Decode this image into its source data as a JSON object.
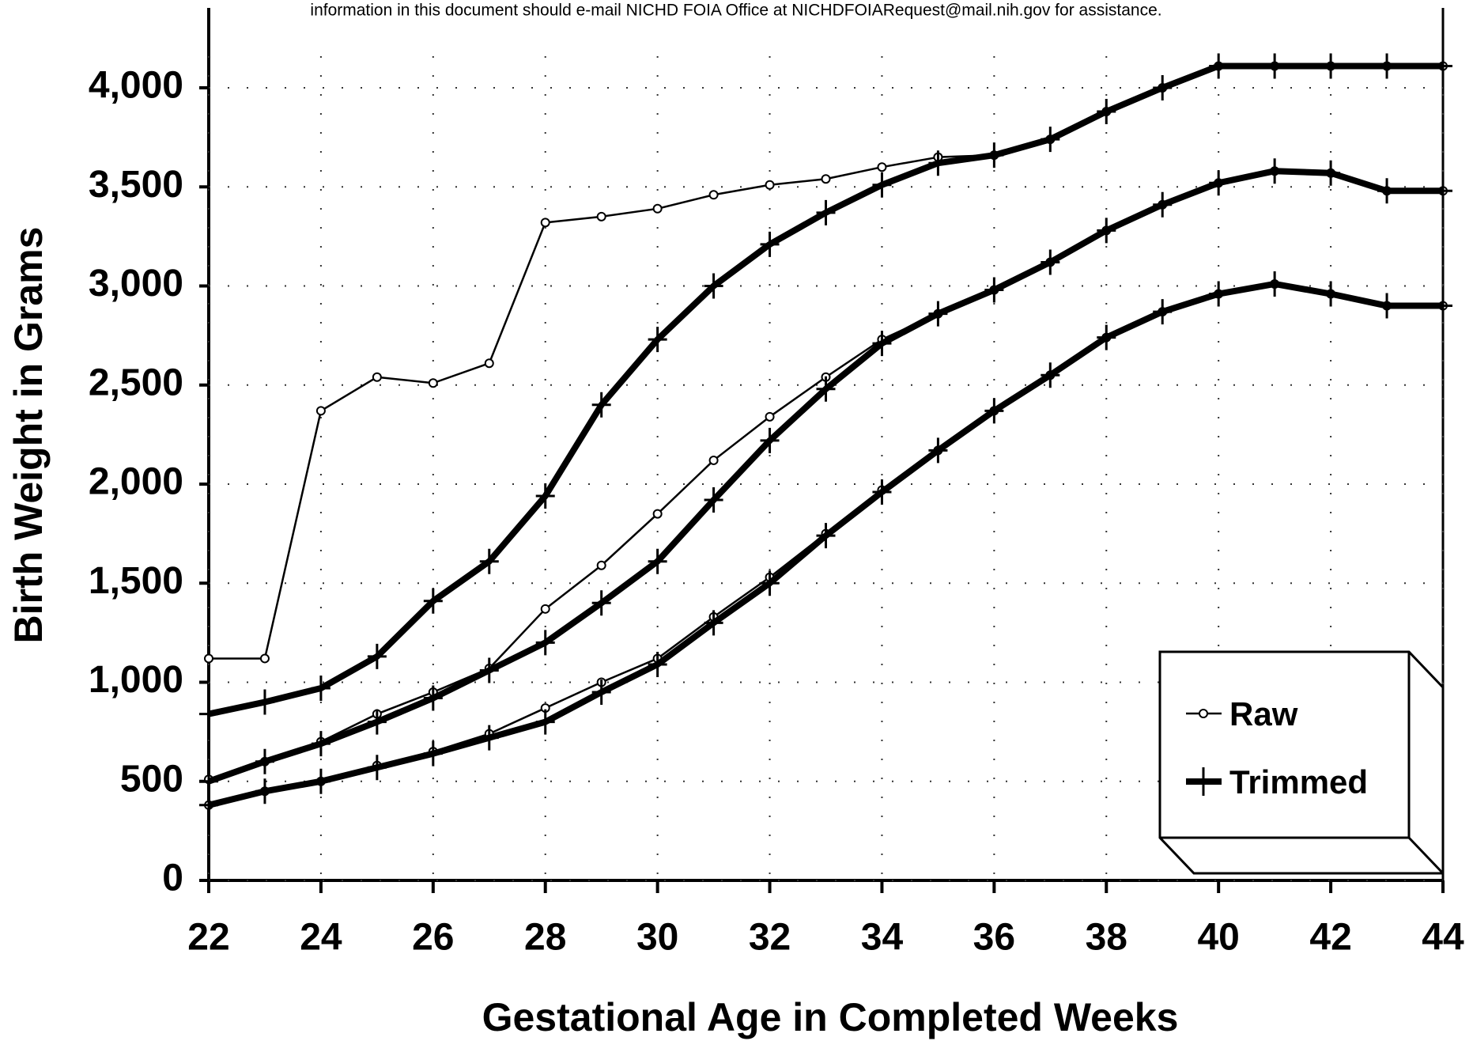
{
  "note": "information in this document should e-mail NICHD FOIA Office at NICHDFOIARequest@mail.nih.gov for assistance.",
  "chart_data": {
    "type": "line",
    "xlabel": "Gestational Age in Completed Weeks",
    "ylabel": "Birth Weight in Grams",
    "x": [
      22,
      23,
      24,
      25,
      26,
      27,
      28,
      29,
      30,
      31,
      32,
      33,
      34,
      35,
      36,
      37,
      38,
      39,
      40,
      41,
      42,
      43,
      44
    ],
    "xlim": [
      22,
      44
    ],
    "xticks": [
      22,
      24,
      26,
      28,
      30,
      32,
      34,
      36,
      38,
      40,
      42,
      44
    ],
    "ylim": [
      0,
      4000
    ],
    "yticks": [
      0,
      500,
      {
        "value": 1000,
        "label": "1,000"
      },
      {
        "value": 1500,
        "label": "1,500"
      },
      {
        "value": 2000,
        "label": "2,000"
      },
      {
        "value": 2500,
        "label": "2,500"
      },
      {
        "value": 3000,
        "label": "3,000"
      },
      {
        "value": 3500,
        "label": "3,500"
      },
      {
        "value": 4000,
        "label": "4,000"
      }
    ],
    "grid": true,
    "legend": "lower right",
    "series": [
      {
        "name": "Raw",
        "color": "#000000",
        "marker": "circle",
        "values": [
          1120,
          1120,
          2370,
          2540,
          2510,
          2610,
          3320,
          3350,
          3390,
          3460,
          3510,
          3540,
          3600,
          3650,
          3660,
          3740,
          3880,
          4000,
          4110,
          4110,
          4110,
          4110,
          4110
        ]
      },
      {
        "name": "Trimmed",
        "color": "#000000",
        "marker": "cross",
        "values": [
          840,
          900,
          970,
          1130,
          1410,
          1610,
          1940,
          2400,
          2730,
          3000,
          3210,
          3370,
          3510,
          3620,
          3660,
          3740,
          3880,
          4000,
          4110,
          4110,
          4110,
          4110,
          4110
        ]
      },
      {
        "name": "Raw",
        "color": "#000000",
        "marker": "circle",
        "values": [
          510,
          600,
          700,
          840,
          950,
          1070,
          1370,
          1590,
          1850,
          2120,
          2340,
          2540,
          2730,
          2860,
          2980,
          3120,
          3280,
          3410,
          3520,
          3580,
          3570,
          3480,
          3480
        ]
      },
      {
        "name": "Trimmed",
        "color": "#000000",
        "marker": "cross",
        "values": [
          500,
          600,
          690,
          800,
          920,
          1060,
          1200,
          1400,
          1610,
          1920,
          2220,
          2480,
          2710,
          2860,
          2980,
          3120,
          3280,
          3410,
          3520,
          3580,
          3570,
          3480,
          3480
        ]
      },
      {
        "name": "Raw",
        "color": "#000000",
        "marker": "circle",
        "values": [
          380,
          450,
          500,
          580,
          650,
          740,
          870,
          1000,
          1120,
          1330,
          1530,
          1750,
          1970,
          2170,
          2370,
          2550,
          2740,
          2870,
          2960,
          3010,
          2960,
          2900,
          2900
        ]
      },
      {
        "name": "Trimmed",
        "color": "#000000",
        "marker": "cross",
        "values": [
          380,
          450,
          500,
          570,
          640,
          720,
          800,
          950,
          1090,
          1300,
          1500,
          1740,
          1960,
          2170,
          2370,
          2550,
          2740,
          2870,
          2960,
          3010,
          2960,
          2900,
          2900
        ]
      }
    ]
  }
}
